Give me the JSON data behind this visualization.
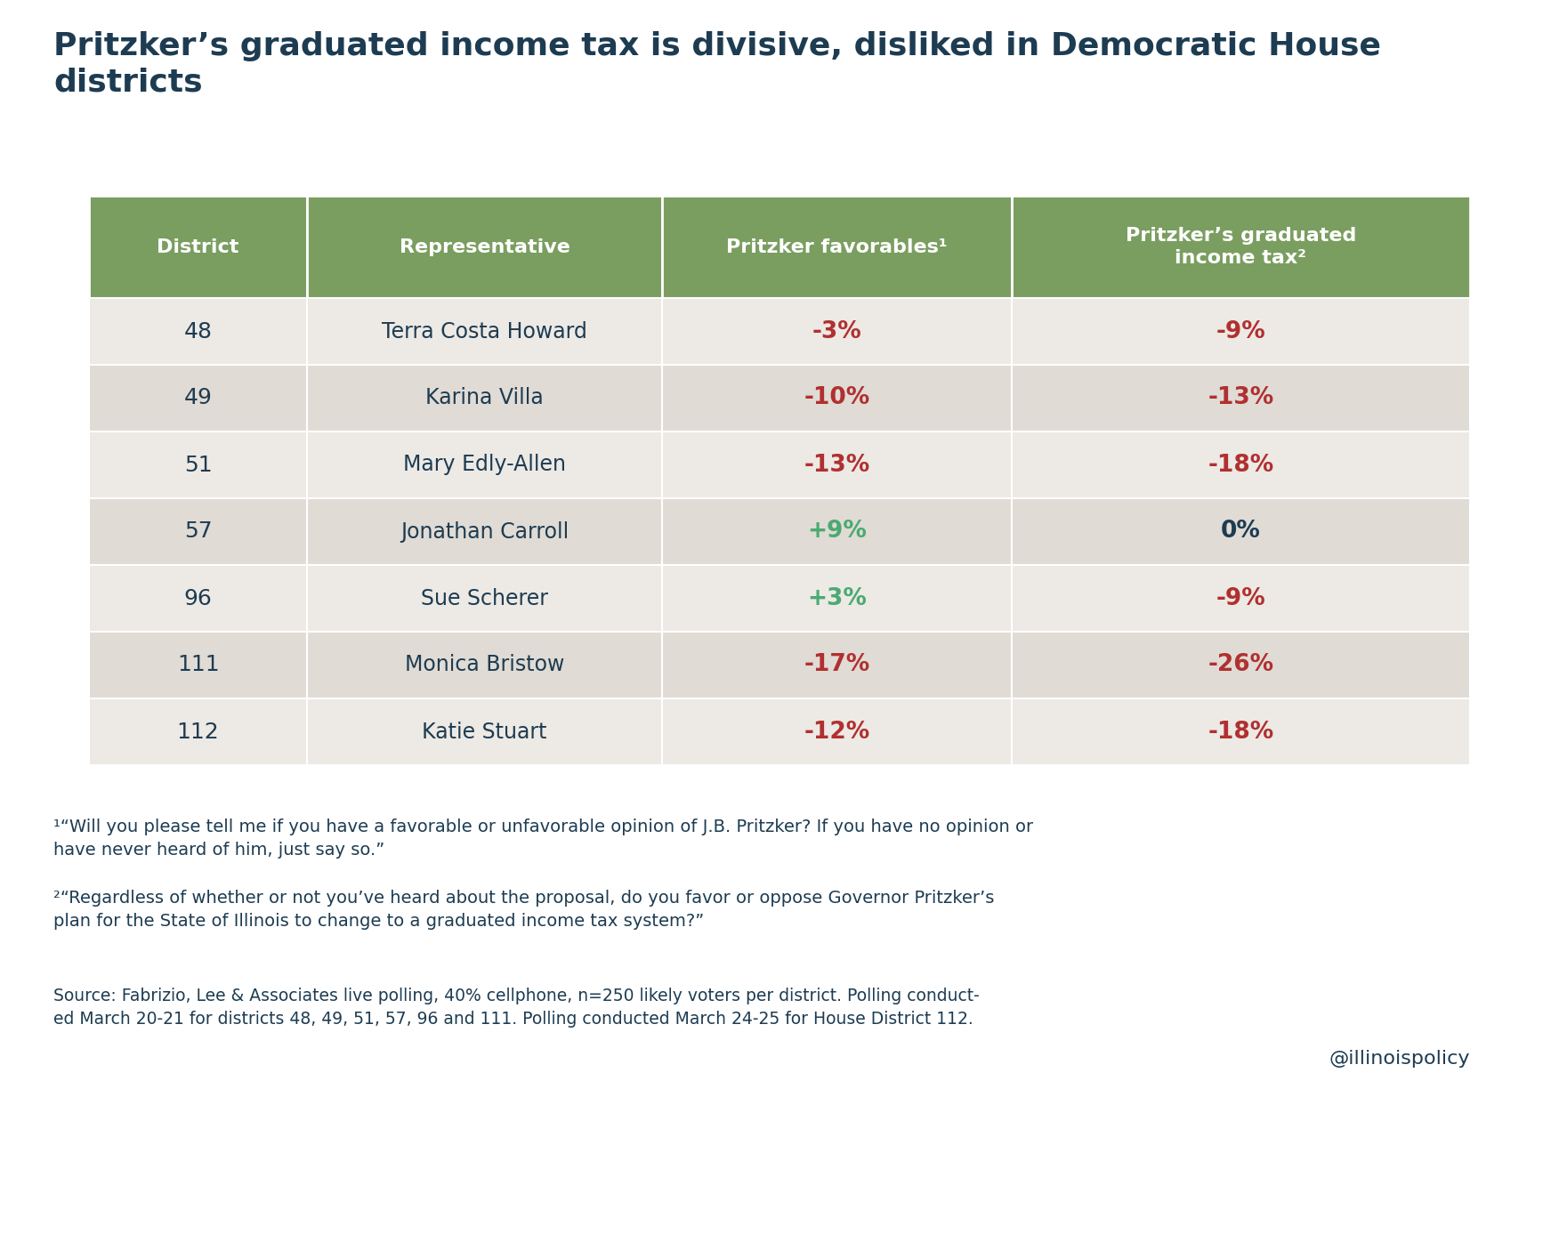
{
  "title": "Pritzker’s graduated income tax is divisive, disliked in Democratic House\ndistricts",
  "title_color": "#1d3c52",
  "background_color": "#ffffff",
  "header_bg_color": "#7a9e60",
  "header_text_color": "#ffffff",
  "row_bg_colors": [
    "#ede9e4",
    "#e0dbd4",
    "#ede9e4",
    "#e0dbd4",
    "#ede9e4",
    "#e0dbd4",
    "#ede9e4"
  ],
  "col_headers": [
    "District",
    "Representative",
    "Pritzker favorables¹",
    "Pritzker’s graduated\nincome tax²"
  ],
  "rows": [
    [
      "48",
      "Terra Costa Howard",
      "-3%",
      "-9%"
    ],
    [
      "49",
      "Karina Villa",
      "-10%",
      "-13%"
    ],
    [
      "51",
      "Mary Edly-Allen",
      "-13%",
      "-18%"
    ],
    [
      "57",
      "Jonathan Carroll",
      "+9%",
      "0%"
    ],
    [
      "96",
      "Sue Scherer",
      "+3%",
      "-9%"
    ],
    [
      "111",
      "Monica Bristow",
      "-17%",
      "-26%"
    ],
    [
      "112",
      "Katie Stuart",
      "-12%",
      "-18%"
    ]
  ],
  "col3_colors": [
    "#b03030",
    "#b03030",
    "#b03030",
    "#4aaa72",
    "#4aaa72",
    "#b03030",
    "#b03030"
  ],
  "col4_colors": [
    "#b03030",
    "#b03030",
    "#b03030",
    "#1d3c52",
    "#b03030",
    "#b03030",
    "#b03030"
  ],
  "footnote1": "¹“Will you please tell me if you have a favorable or unfavorable opinion of J.B. Pritzker? If you have no opinion or\nhave never heard of him, just say so.”",
  "footnote2": "²“Regardless of whether or not you’ve heard about the proposal, do you favor or oppose Governor Pritzker’s\nplan for the State of Illinois to change to a graduated income tax system?”",
  "source": "Source: Fabrizio, Lee & Associates live polling, 40% cellphone, n=250 likely voters per district. Polling conduct-\ned March 20-21 for districts 48, 49, 51, 57, 96 and 111. Polling conducted March 24-25 for House District 112.",
  "watermark": "@illinoispolicy",
  "text_color": "#1d3c52"
}
